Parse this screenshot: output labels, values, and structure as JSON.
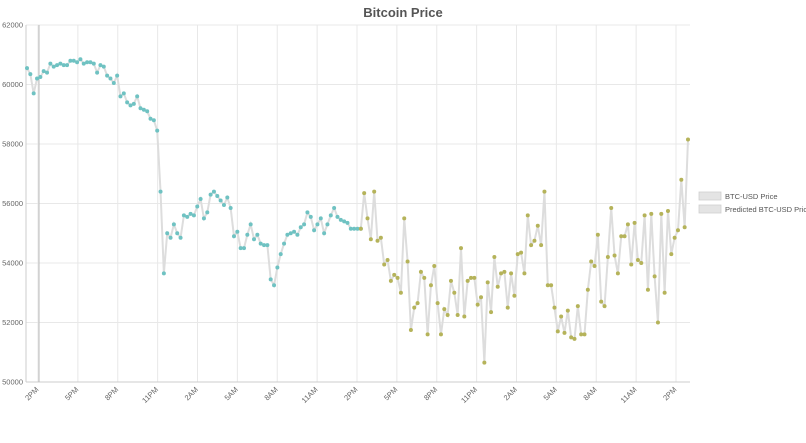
{
  "chart_data": {
    "type": "line",
    "title": "Bitcoin Price",
    "xlabel": "",
    "ylabel": "",
    "ylim": [
      50000,
      62000
    ],
    "y_ticks": [
      50000,
      52000,
      54000,
      56000,
      58000,
      60000,
      62000
    ],
    "x_tick_labels": [
      "2PM",
      "5PM",
      "8PM",
      "11PM",
      "2AM",
      "5AM",
      "8AM",
      "11AM",
      "2PM",
      "5PM",
      "8PM",
      "11PM",
      "2AM",
      "5AM",
      "8AM",
      "11AM",
      "2PM"
    ],
    "x_tick_index_spacing": 3,
    "x_tick_offset": 0.5,
    "grid": true,
    "legend_position": "right",
    "line_color": "#dddddd",
    "series": [
      {
        "name": "BTC-USD Price",
        "color": "#6fc2c2",
        "x_start": 0,
        "values": [
          60550,
          60350,
          59700,
          60200,
          60250,
          60450,
          60400,
          60700,
          60600,
          60650,
          60700,
          60650,
          60650,
          60800,
          60800,
          60750,
          60850,
          60700,
          60750,
          60750,
          60700,
          60400,
          60650,
          60600,
          60300,
          60200,
          60050,
          60300,
          59600,
          59700,
          59400,
          59300,
          59350,
          59600,
          59200,
          59150,
          59100,
          58850,
          58800,
          58450,
          56400,
          53650,
          55000,
          54850,
          55300,
          55000,
          54850,
          55600,
          55550,
          55650,
          55600,
          55900,
          56150,
          55500,
          55700,
          56300,
          56400,
          56250,
          56100,
          55950,
          56200,
          55850,
          54900,
          55050,
          54500,
          54500,
          54950,
          55300,
          54800,
          54950,
          54650,
          54600,
          54600,
          53450,
          53250,
          53850,
          54300,
          54650,
          54950,
          55000,
          55050,
          54950,
          55200,
          55300,
          55700,
          55550,
          55100,
          55300,
          55500,
          55000,
          55300,
          55600,
          55850,
          55550,
          55450,
          55400,
          55350,
          55150,
          55150,
          55150,
          55150
        ]
      },
      {
        "name": "Predicted BTC-USD Price",
        "color": "#b5b35a",
        "x_start": 100,
        "values": [
          55150,
          56350,
          55500,
          54800,
          56400,
          54750,
          54850,
          53950,
          54100,
          53400,
          53600,
          53500,
          53000,
          55500,
          54050,
          51750,
          52500,
          52650,
          53700,
          53500,
          51600,
          53250,
          53900,
          52650,
          51600,
          52450,
          52250,
          53400,
          53000,
          52250,
          54500,
          52200,
          53400,
          53500,
          53500,
          52600,
          52850,
          50650,
          53350,
          52350,
          54200,
          53200,
          53650,
          53700,
          52500,
          53650,
          52900,
          54300,
          54350,
          53650,
          55600,
          54600,
          54750,
          55250,
          54600,
          56400,
          53250,
          53250,
          52500,
          51700,
          52200,
          51650,
          52400,
          51500,
          51450,
          52550,
          51600,
          51600,
          53100,
          54050,
          53900,
          54950,
          52700,
          52550,
          54200,
          55850,
          54250,
          53650,
          54900,
          54900,
          55300,
          53950,
          55350,
          54100,
          54000,
          55600,
          53100,
          55650,
          53550,
          52000,
          55650,
          53000,
          55750,
          54300,
          54850,
          55100,
          56800,
          55200,
          58150
        ]
      }
    ]
  }
}
